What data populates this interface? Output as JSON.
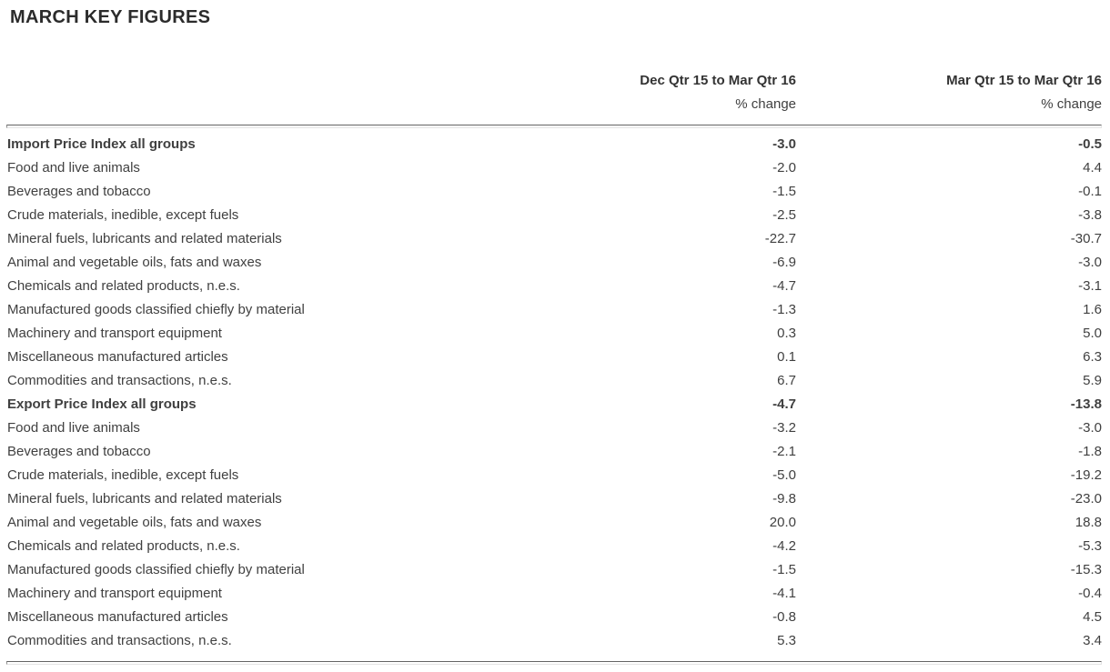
{
  "title": "MARCH KEY FIGURES",
  "table": {
    "columns": [
      {
        "label": "Dec Qtr 15 to Mar Qtr 16",
        "sublabel": "% change"
      },
      {
        "label": "Mar Qtr 15 to Mar Qtr 16",
        "sublabel": "% change"
      }
    ],
    "rows": [
      {
        "label": "Import Price Index all groups",
        "bold": true,
        "col1": "-3.0",
        "col2": "-0.5"
      },
      {
        "label": "Food and live animals",
        "bold": false,
        "col1": "-2.0",
        "col2": "4.4"
      },
      {
        "label": "Beverages and tobacco",
        "bold": false,
        "col1": "-1.5",
        "col2": "-0.1"
      },
      {
        "label": "Crude materials, inedible, except fuels",
        "bold": false,
        "col1": "-2.5",
        "col2": "-3.8"
      },
      {
        "label": "Mineral fuels, lubricants and related materials",
        "bold": false,
        "col1": "-22.7",
        "col2": "-30.7"
      },
      {
        "label": "Animal and vegetable oils, fats and waxes",
        "bold": false,
        "col1": "-6.9",
        "col2": "-3.0"
      },
      {
        "label": "Chemicals and related products, n.e.s.",
        "bold": false,
        "col1": "-4.7",
        "col2": "-3.1"
      },
      {
        "label": "Manufactured goods classified chiefly by material",
        "bold": false,
        "col1": "-1.3",
        "col2": "1.6"
      },
      {
        "label": "Machinery and transport equipment",
        "bold": false,
        "col1": "0.3",
        "col2": "5.0"
      },
      {
        "label": "Miscellaneous manufactured articles",
        "bold": false,
        "col1": "0.1",
        "col2": "6.3"
      },
      {
        "label": "Commodities and transactions, n.e.s.",
        "bold": false,
        "col1": "6.7",
        "col2": "5.9"
      },
      {
        "label": "Export Price Index all groups",
        "bold": true,
        "col1": "-4.7",
        "col2": "-13.8"
      },
      {
        "label": "Food and live animals",
        "bold": false,
        "col1": "-3.2",
        "col2": "-3.0"
      },
      {
        "label": "Beverages and tobacco",
        "bold": false,
        "col1": "-2.1",
        "col2": "-1.8"
      },
      {
        "label": "Crude materials, inedible, except fuels",
        "bold": false,
        "col1": "-5.0",
        "col2": "-19.2"
      },
      {
        "label": "Mineral fuels, lubricants and related materials",
        "bold": false,
        "col1": "-9.8",
        "col2": "-23.0"
      },
      {
        "label": "Animal and vegetable oils, fats and waxes",
        "bold": false,
        "col1": "20.0",
        "col2": "18.8"
      },
      {
        "label": "Chemicals and related products, n.e.s.",
        "bold": false,
        "col1": "-4.2",
        "col2": "-5.3"
      },
      {
        "label": "Manufactured goods classified chiefly by material",
        "bold": false,
        "col1": "-1.5",
        "col2": "-15.3"
      },
      {
        "label": "Machinery and transport equipment",
        "bold": false,
        "col1": "-4.1",
        "col2": "-0.4"
      },
      {
        "label": "Miscellaneous manufactured articles",
        "bold": false,
        "col1": "-0.8",
        "col2": "4.5"
      },
      {
        "label": "Commodities and transactions, n.e.s.",
        "bold": false,
        "col1": "5.3",
        "col2": "3.4"
      }
    ]
  },
  "colors": {
    "title_text": "#2b2b2b",
    "body_text": "#404040",
    "rule_dark": "#646464",
    "rule_light": "#e4e4e4"
  }
}
